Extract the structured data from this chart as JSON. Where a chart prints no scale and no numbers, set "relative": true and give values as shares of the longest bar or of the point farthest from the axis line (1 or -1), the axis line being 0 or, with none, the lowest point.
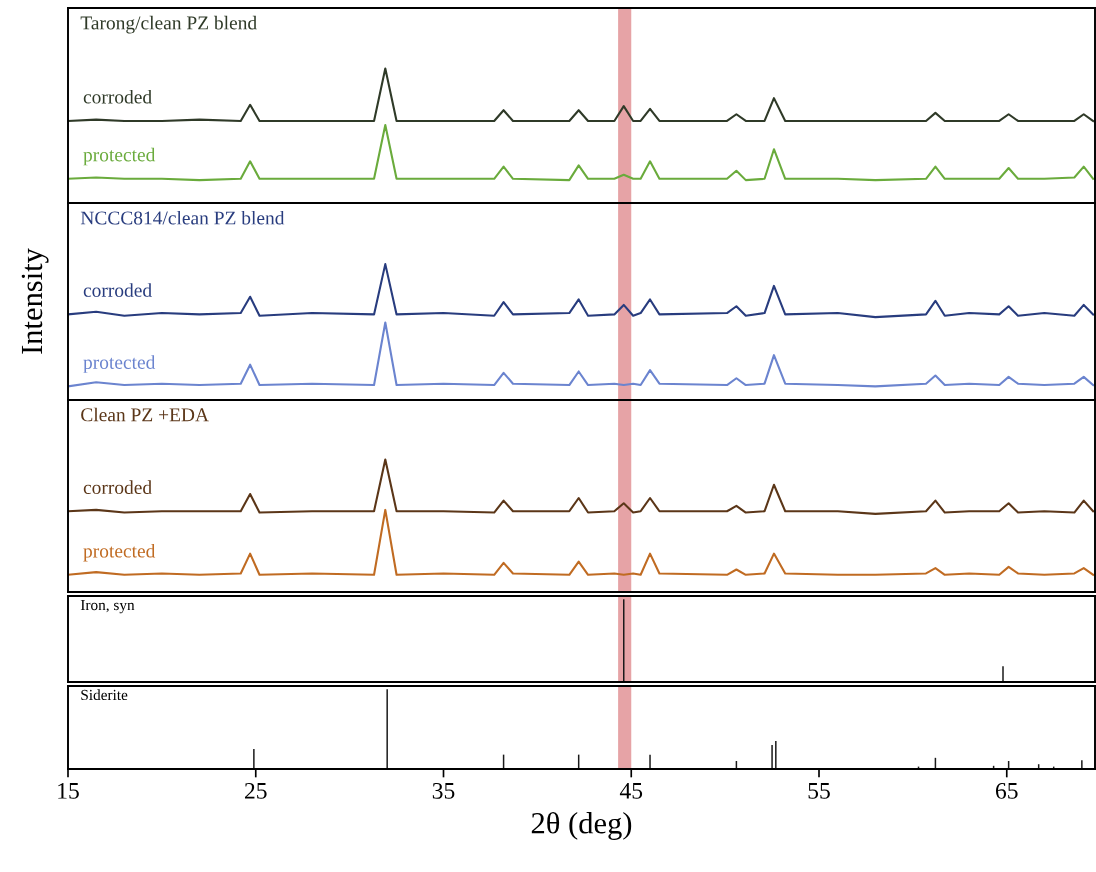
{
  "chart_data": [
    {
      "type": "line",
      "title": "Tarong/clean PZ blend",
      "relative": true,
      "tick_labels": false,
      "xlim": [
        15,
        69.7
      ],
      "x": [
        15,
        16.5,
        18,
        20,
        22,
        24.2,
        24.7,
        25.2,
        28,
        31.3,
        31.9,
        32.5,
        35,
        37.7,
        38.2,
        38.7,
        41.7,
        42.2,
        42.7,
        44.1,
        44.6,
        45.1,
        45.5,
        46.0,
        46.5,
        50.1,
        50.6,
        51.1,
        52.1,
        52.6,
        53.2,
        56,
        58,
        60.7,
        61.2,
        61.7,
        63,
        64.6,
        65.1,
        65.6,
        67,
        68.6,
        69.1,
        69.6
      ],
      "bands": [
        {
          "axis": "x",
          "from": 44.3,
          "to": 45.0,
          "color": "#e6a3a6"
        }
      ],
      "series": [
        {
          "name": "corroded",
          "color": "#2f3a28",
          "values": [
            0.61,
            0.62,
            0.61,
            0.61,
            0.62,
            0.61,
            0.73,
            0.61,
            0.61,
            0.61,
            1.0,
            0.61,
            0.61,
            0.61,
            0.69,
            0.61,
            0.61,
            0.69,
            0.61,
            0.61,
            0.72,
            0.61,
            0.61,
            0.7,
            0.61,
            0.61,
            0.66,
            0.61,
            0.61,
            0.78,
            0.61,
            0.61,
            0.61,
            0.61,
            0.67,
            0.61,
            0.61,
            0.61,
            0.66,
            0.61,
            0.61,
            0.61,
            0.66,
            0.61
          ]
        },
        {
          "name": "protected",
          "color": "#6aab3c",
          "values": [
            0.18,
            0.19,
            0.18,
            0.18,
            0.17,
            0.18,
            0.31,
            0.18,
            0.18,
            0.18,
            0.58,
            0.18,
            0.18,
            0.18,
            0.27,
            0.18,
            0.17,
            0.28,
            0.18,
            0.18,
            0.21,
            0.18,
            0.18,
            0.31,
            0.18,
            0.18,
            0.24,
            0.17,
            0.18,
            0.4,
            0.18,
            0.18,
            0.17,
            0.18,
            0.27,
            0.18,
            0.18,
            0.18,
            0.26,
            0.18,
            0.18,
            0.19,
            0.27,
            0.18
          ]
        }
      ]
    },
    {
      "type": "line",
      "title": "NCCC814/clean PZ blend",
      "ylabel": "Intensity",
      "relative": true,
      "tick_labels": false,
      "xlim": [
        15,
        69.7
      ],
      "x": [
        15,
        16.5,
        18,
        20,
        22,
        24.2,
        24.7,
        25.2,
        28,
        31.3,
        31.9,
        32.5,
        35,
        37.7,
        38.2,
        38.7,
        41.7,
        42.2,
        42.7,
        44.1,
        44.6,
        45.1,
        45.5,
        46.0,
        46.5,
        50.1,
        50.6,
        51.1,
        52.1,
        52.6,
        53.2,
        56,
        58,
        60.7,
        61.2,
        61.7,
        63,
        64.6,
        65.1,
        65.6,
        67,
        68.6,
        69.1,
        69.6
      ],
      "bands": [
        {
          "axis": "x",
          "from": 44.3,
          "to": 45.0,
          "color": "#e6a3a6"
        }
      ],
      "series": [
        {
          "name": "corroded",
          "color": "#283c7e",
          "values": [
            0.63,
            0.65,
            0.62,
            0.64,
            0.63,
            0.64,
            0.76,
            0.62,
            0.64,
            0.63,
            1.0,
            0.63,
            0.64,
            0.62,
            0.72,
            0.63,
            0.64,
            0.74,
            0.62,
            0.63,
            0.7,
            0.62,
            0.64,
            0.74,
            0.63,
            0.64,
            0.69,
            0.62,
            0.64,
            0.84,
            0.63,
            0.64,
            0.61,
            0.63,
            0.73,
            0.62,
            0.64,
            0.63,
            0.69,
            0.62,
            0.64,
            0.62,
            0.7,
            0.63
          ]
        },
        {
          "name": "protected",
          "color": "#6b84cf",
          "values": [
            0.1,
            0.13,
            0.11,
            0.12,
            0.11,
            0.12,
            0.26,
            0.11,
            0.12,
            0.11,
            0.57,
            0.11,
            0.12,
            0.11,
            0.2,
            0.12,
            0.11,
            0.21,
            0.11,
            0.12,
            0.11,
            0.12,
            0.11,
            0.22,
            0.12,
            0.11,
            0.16,
            0.11,
            0.12,
            0.33,
            0.12,
            0.11,
            0.1,
            0.12,
            0.18,
            0.11,
            0.12,
            0.11,
            0.17,
            0.12,
            0.11,
            0.12,
            0.17,
            0.11
          ]
        }
      ]
    },
    {
      "type": "line",
      "title": "Clean PZ +EDA",
      "relative": true,
      "tick_labels": false,
      "xlim": [
        15,
        69.7
      ],
      "x": [
        15,
        16.5,
        18,
        20,
        22,
        24.2,
        24.7,
        25.2,
        28,
        31.3,
        31.9,
        32.5,
        35,
        37.7,
        38.2,
        38.7,
        41.7,
        42.2,
        42.7,
        44.1,
        44.6,
        45.1,
        45.5,
        46.0,
        46.5,
        50.1,
        50.6,
        51.1,
        52.1,
        52.6,
        53.2,
        56,
        58,
        60.7,
        61.2,
        61.7,
        63,
        64.6,
        65.1,
        65.6,
        67,
        68.6,
        69.1,
        69.6
      ],
      "bands": [
        {
          "axis": "x",
          "from": 44.3,
          "to": 45.0,
          "color": "#e6a3a6"
        }
      ],
      "series": [
        {
          "name": "corroded",
          "color": "#5b3618",
          "values": [
            0.61,
            0.62,
            0.6,
            0.61,
            0.61,
            0.61,
            0.74,
            0.6,
            0.61,
            0.61,
            1.0,
            0.61,
            0.61,
            0.6,
            0.69,
            0.61,
            0.61,
            0.71,
            0.6,
            0.61,
            0.67,
            0.6,
            0.61,
            0.71,
            0.61,
            0.61,
            0.65,
            0.6,
            0.61,
            0.81,
            0.61,
            0.61,
            0.59,
            0.61,
            0.69,
            0.6,
            0.61,
            0.61,
            0.67,
            0.6,
            0.61,
            0.6,
            0.69,
            0.61
          ]
        },
        {
          "name": "protected",
          "color": "#c06b22",
          "values": [
            0.13,
            0.15,
            0.13,
            0.14,
            0.13,
            0.14,
            0.29,
            0.13,
            0.14,
            0.13,
            0.62,
            0.13,
            0.14,
            0.13,
            0.22,
            0.14,
            0.13,
            0.23,
            0.13,
            0.14,
            0.13,
            0.14,
            0.13,
            0.29,
            0.14,
            0.13,
            0.17,
            0.13,
            0.14,
            0.29,
            0.14,
            0.13,
            0.13,
            0.14,
            0.18,
            0.13,
            0.14,
            0.13,
            0.19,
            0.14,
            0.13,
            0.14,
            0.18,
            0.13
          ]
        }
      ]
    },
    {
      "type": "bar",
      "title": "Iron, syn",
      "relative": true,
      "tick_labels": false,
      "xlim": [
        15,
        69.7
      ],
      "x": [
        44.6,
        64.8
      ],
      "bands": [
        {
          "axis": "x",
          "from": 44.3,
          "to": 45.0,
          "color": "#e6a3a6"
        }
      ],
      "series": [
        {
          "color": "#1a1a1a",
          "values": [
            1.0,
            0.19
          ]
        }
      ]
    },
    {
      "type": "bar",
      "title": "Siderite",
      "xlabel": "2θ (deg)",
      "relative": true,
      "tick_labels": "x",
      "xlim": [
        15,
        69.7
      ],
      "xticks": [
        15,
        25,
        35,
        45,
        55,
        65
      ],
      "x": [
        24.9,
        32.0,
        38.2,
        42.2,
        46.0,
        50.6,
        52.5,
        52.7,
        60.3,
        61.2,
        64.3,
        65.1,
        66.7,
        67.5,
        69.0
      ],
      "bands": [
        {
          "axis": "x",
          "from": 44.3,
          "to": 45.0,
          "color": "#e6a3a6"
        }
      ],
      "series": [
        {
          "color": "#1a1a1a",
          "values": [
            0.25,
            1.0,
            0.18,
            0.18,
            0.18,
            0.1,
            0.3,
            0.35,
            0.03,
            0.14,
            0.04,
            0.1,
            0.06,
            0.03,
            0.11
          ]
        }
      ]
    }
  ]
}
